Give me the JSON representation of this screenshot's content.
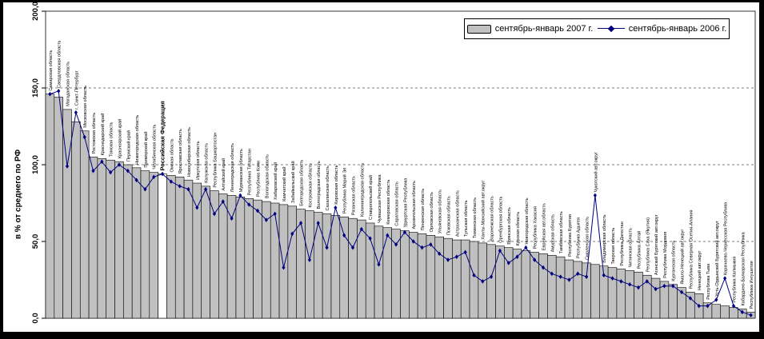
{
  "chart_data": {
    "type": "bar",
    "combo_line_overlay": true,
    "title": "",
    "xlabel": "",
    "ylabel": "в % от среднего по РФ",
    "ylim": [
      0,
      200
    ],
    "ytick_values": [
      0,
      50,
      100,
      150,
      200
    ],
    "ytick_labels": [
      "0,0",
      "50,0",
      "100,0",
      "150,0",
      "200,0"
    ],
    "gridlines": [
      50,
      100,
      150
    ],
    "grid_style": "dashed-horizontal",
    "legend_position": "top-right",
    "highlight_category": "Российская Федерация",
    "highlight_fill": "#ffffff",
    "plot_bg": "#ffffff",
    "categories": [
      "Самарская область",
      "Свердловская область",
      "Магаданская область",
      "г. Санкт-Петербург",
      "Московская область",
      "Ростовская область",
      "Краснодарский край",
      "Томская область",
      "Красноярский край",
      "Пермский край",
      "Нижегородская область",
      "Приморский край",
      "Челябинская область",
      "Российская Федерация",
      "Омская область",
      "Ярославская область",
      "Новосибирская область",
      "Иркутская область",
      "Калужская область",
      "Республика Башкортостан",
      "Алтайский край",
      "Ленинградская область",
      "Мурманская область",
      "Республика Татарстан",
      "Республика Коми",
      "Вологодская область",
      "Хабаровский край",
      "Камчатский край",
      "Забайкальский край",
      "Белгородская область",
      "Костромская область",
      "Волгоградская область",
      "Сахалинская область",
      "Кировская область",
      "Республика Марий Эл",
      "Рязанская область",
      "Калининградская область",
      "Ставропольский край",
      "Чувашская Республика",
      "Кемеровская область",
      "Саратовская область",
      "Удмуртская Республика",
      "Архангельская область",
      "Пензенская область",
      "Орловская область",
      "Ульяновская область",
      "Псковская область",
      "Астраханская область",
      "Тульская область",
      "Тюменская область",
      "Ханты-Мансийский авт.округ",
      "Воронежская область",
      "Оренбургская область",
      "Брянская область",
      "Курская область",
      "Новгородская область",
      "Республика Хакасия",
      "Еврейская авт.область",
      "Амурская область",
      "Тамбовская область",
      "Республика Бурятия",
      "Республика Адыгея",
      "Смоленская область",
      "Чукотский авт.округ",
      "Владимирская область",
      "Тверская область",
      "Республика Дагестан",
      "Читинская область",
      "Республика Алтай",
      "Республика Саха (Якутия)",
      "Агинский Бурятский авт.округ",
      "Республика Мордовия",
      "Курганская область",
      "Ямало-Ненецкий авт.округ",
      "Республика Северная Осетия-Алания",
      "Ненецкий авт.округ",
      "Республика Тыва",
      "Усть-Ордынский Бурятский авт.округ",
      "Карачаево-Черкесская Республика",
      "Республика Калмыкия",
      "Кабардино-Балкарская Республика",
      "Республика Ингушетия"
    ],
    "series": [
      {
        "name": "сентябрь-январь 2007 г.",
        "type": "bar",
        "color": "#c0c0c0",
        "border_color": "#000000",
        "values": [
          146,
          144,
          136,
          128,
          122,
          105,
          104,
          103,
          102,
          100,
          98,
          96,
          95,
          94,
          93,
          92,
          90,
          88,
          86,
          83,
          81,
          80,
          79,
          78,
          77,
          76,
          75,
          74,
          73,
          71,
          70,
          69,
          68,
          67,
          66,
          65,
          64,
          62,
          60,
          59,
          58,
          57,
          56,
          55,
          54,
          53,
          52,
          51,
          51,
          50,
          49,
          48,
          47,
          46,
          45,
          44,
          43,
          42,
          41,
          40,
          38,
          37,
          36,
          35,
          34,
          33,
          32,
          31,
          30,
          28,
          26,
          24,
          22,
          20,
          17,
          16,
          10,
          9,
          8,
          7,
          6,
          4
        ]
      },
      {
        "name": "сентябрь-январь 2006 г.",
        "type": "line",
        "color": "#000080",
        "marker": "diamond",
        "values": [
          146,
          148,
          99,
          134,
          118,
          96,
          102,
          95,
          100,
          96,
          90,
          84,
          92,
          94,
          89,
          86,
          84,
          72,
          84,
          68,
          76,
          65,
          80,
          74,
          70,
          64,
          68,
          33,
          55,
          62,
          38,
          62,
          46,
          72,
          54,
          46,
          58,
          52,
          35,
          54,
          48,
          56,
          50,
          46,
          48,
          42,
          38,
          40,
          43,
          28,
          24,
          27,
          44,
          36,
          40,
          46,
          38,
          33,
          29,
          27,
          25,
          29,
          27,
          80,
          28,
          26,
          24,
          22,
          20,
          24,
          19,
          21,
          21,
          17,
          13,
          8,
          8,
          12,
          26,
          8,
          4,
          2
        ]
      }
    ]
  }
}
